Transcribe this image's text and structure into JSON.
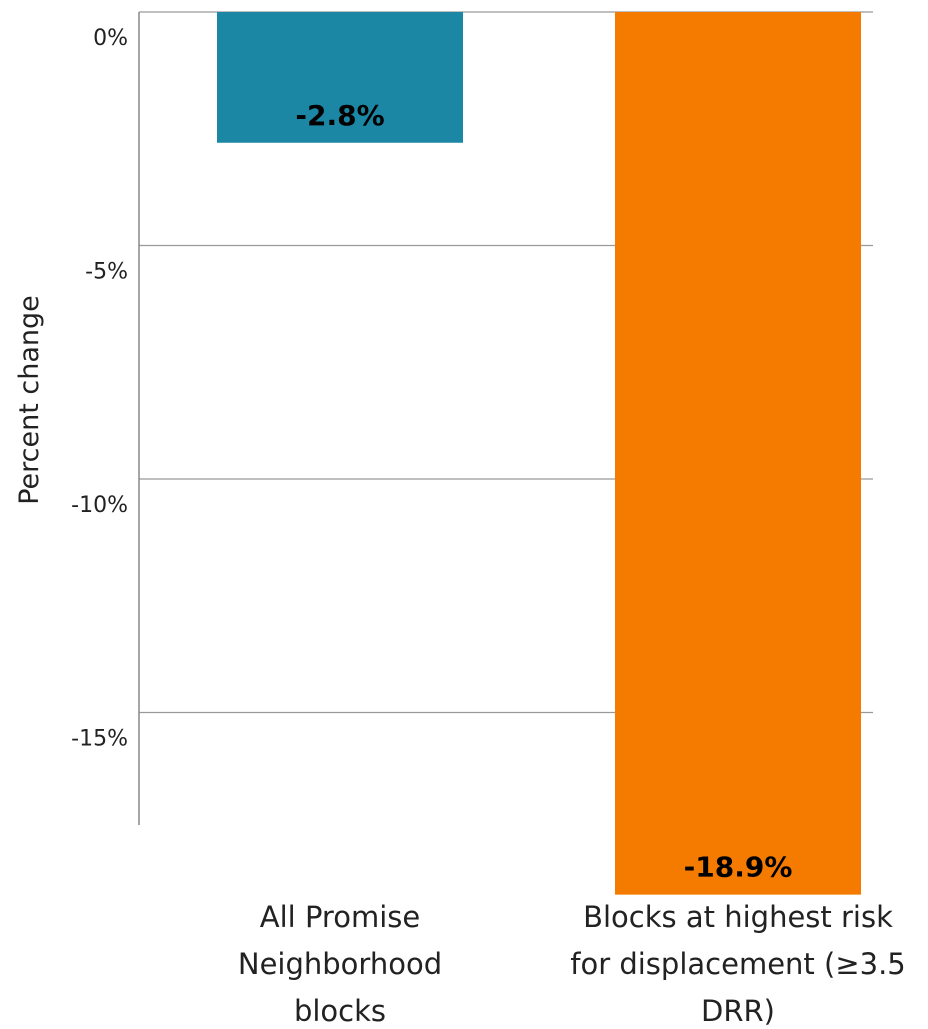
{
  "chart_data": {
    "type": "bar",
    "ylabel": "Percent change",
    "ylim": [
      -17.3,
      0
    ],
    "yticks": [
      0,
      -5,
      -10,
      -15
    ],
    "ytick_labels": [
      "0%",
      "-5%",
      "-10%",
      "-15%"
    ],
    "grid": true,
    "categories": [
      "All Promise Neighborhood blocks",
      "Blocks at highest risk for displacement (≥3.5 DRR)"
    ],
    "category_label_lines": [
      [
        "All Promise",
        "Neighborhood",
        "blocks"
      ],
      [
        "Blocks at highest risk",
        "for displacement (≥3.5",
        "DRR)"
      ]
    ],
    "values": [
      -2.8,
      -18.9
    ],
    "data_labels": [
      "-2.8%",
      "-18.9%"
    ],
    "colors": [
      "#1b87a5",
      "#f47b00"
    ]
  }
}
